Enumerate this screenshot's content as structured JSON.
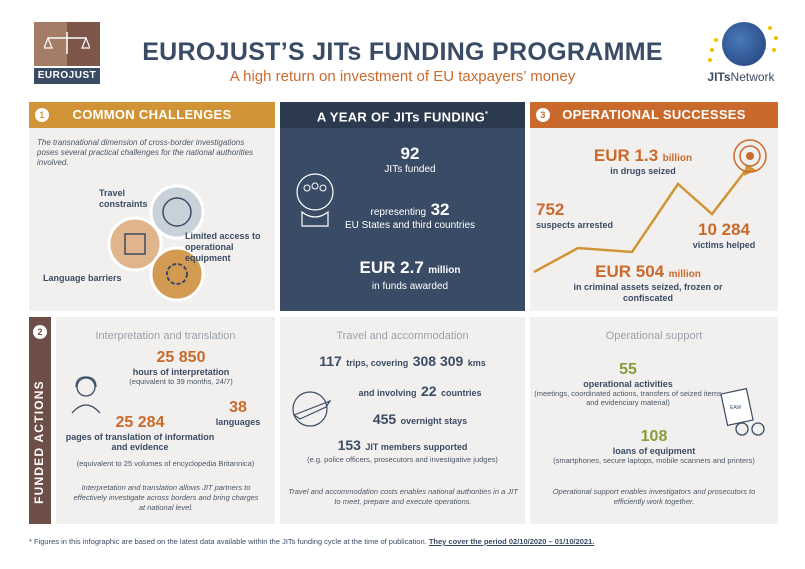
{
  "header": {
    "logo_left_text": "EUROJUST",
    "title": "EUROJUST’S JITs FUNDING PROGRAMME",
    "subtitle": "A high return on investment of EU taxpayers’ money",
    "logo_right_text_a": "JITs",
    "logo_right_text_b": "Network"
  },
  "challenges": {
    "number": "1",
    "heading": "COMMON CHALLENGES",
    "intro": "The transnational dimension of cross-border investigations poses several practical challenges for the national authorities involved.",
    "items": [
      "Travel constraints",
      "Limited access to operational equipment",
      "Language barriers"
    ]
  },
  "year": {
    "heading": "A YEAR OF JITs FUNDING",
    "heading_mark": "*",
    "jits_number": "92",
    "jits_label": "JITs funded",
    "representing_label": "representing",
    "states_number": "32",
    "states_label": "EU States and third countries",
    "funds_number": "EUR 2.7",
    "funds_unit": "million",
    "funds_label": "in funds awarded"
  },
  "successes": {
    "number": "3",
    "heading": "OPERATIONAL SUCCESSES",
    "drugs_value": "EUR 1.3",
    "drugs_unit": "billion",
    "drugs_label": "in drugs seized",
    "suspects_value": "752",
    "suspects_label": "suspects arrested",
    "victims_value": "10 284",
    "victims_label": "victims helped",
    "assets_value": "EUR 504",
    "assets_unit": "million",
    "assets_label": "in criminal assets seized, frozen or confiscated"
  },
  "funded": {
    "number": "2",
    "side_label": "FUNDED ACTIONS",
    "interpretation": {
      "heading": "Interpretation and translation",
      "hours_value": "25 850",
      "hours_label": "hours of interpretation",
      "hours_note": "(equivalent to 39 months, 24/7)",
      "pages_value": "25 284",
      "pages_label": "pages of translation of information and evidence",
      "pages_note": "(equivalent to 25 volumes of encyclopedia Britannica)",
      "languages_value": "38",
      "languages_label": "languages",
      "footer": "Interpretation and translation allows JIT partners to effectively investigate across borders and bring charges at national level."
    },
    "travel": {
      "heading": "Travel and accommodation",
      "trips_value": "117",
      "trips_label": "trips, covering",
      "kms_value": "308 309",
      "kms_label": "kms",
      "involving_label": "and involving",
      "countries_value": "22",
      "countries_label": "countries",
      "stays_value": "455",
      "stays_label": "overnight stays",
      "members_value": "153",
      "members_label": "JIT members supported",
      "members_note": "(e.g. police officers, prosecutors and investigative judges)",
      "footer": "Travel and accommodation costs enables national authorities in a JIT to meet, prepare and execute operations."
    },
    "support": {
      "heading": "Operational support",
      "activities_value": "55",
      "activities_label": "operational activities",
      "activities_note": "(meetings, coordinated actions, transfers of seized items and evidenciary material)",
      "loans_value": "108",
      "loans_label": "loans of equipment",
      "loans_note": "(smartphones, secure laptops, mobile scanners and printers)",
      "eaw_label": "EAW",
      "footer": "Operational support enables investigators and prosecutors to efficiently work together."
    }
  },
  "footnote": {
    "text": "* Figures in this infographic are based on the latest data available within the JITs funding cycle at the time of publication.",
    "bold": "They cover the period 02/10/2020 – 01/10/2021."
  },
  "colors": {
    "navy": "#3a4c65",
    "orange": "#c96a2c",
    "gold": "#d09436",
    "green": "#8b9a3a",
    "panel": "#f2f0ee",
    "brown": "#6e4f47"
  }
}
